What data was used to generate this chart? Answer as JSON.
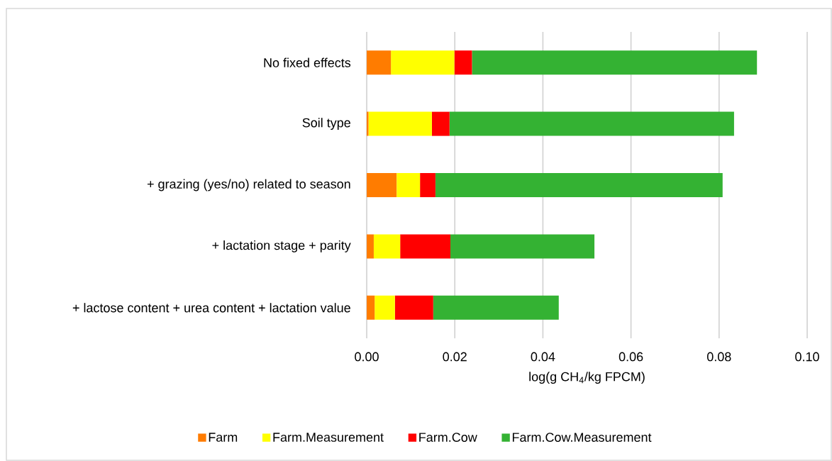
{
  "chart_data": {
    "type": "bar",
    "orientation": "horizontal",
    "stacked": true,
    "categories": [
      "No fixed effects",
      "Soil type",
      "+ grazing (yes/no) related to season",
      "+ lactation stage + parity",
      "+ lactose content + urea content + lactation value"
    ],
    "series": [
      {
        "name": "Farm",
        "color": "#ff7c00",
        "values": [
          0.0055,
          0.0004,
          0.0068,
          0.0016,
          0.0018
        ]
      },
      {
        "name": "Farm.Measurement",
        "color": "#ffff00",
        "values": [
          0.0144,
          0.0144,
          0.0053,
          0.006,
          0.0046
        ]
      },
      {
        "name": "Farm.Cow",
        "color": "#ff0000",
        "values": [
          0.004,
          0.004,
          0.0035,
          0.0114,
          0.0087
        ]
      },
      {
        "name": "Farm.Cow.Measurement",
        "color": "#34b233",
        "values": [
          0.0647,
          0.0646,
          0.0652,
          0.0327,
          0.0285
        ]
      }
    ],
    "xlabel": "log(g CH$_{4}$/kg FPCM)",
    "xlim": [
      0,
      0.1
    ],
    "xticks": [
      {
        "value": 0,
        "label": "0.00"
      },
      {
        "value": 0.02,
        "label": "0.02"
      },
      {
        "value": 0.04,
        "label": "0.04"
      },
      {
        "value": 0.06,
        "label": "0.06"
      },
      {
        "value": 0.08,
        "label": "0.08"
      },
      {
        "value": 0.1,
        "label": "0.10"
      }
    ],
    "grid": "x",
    "legend": "bottom"
  }
}
